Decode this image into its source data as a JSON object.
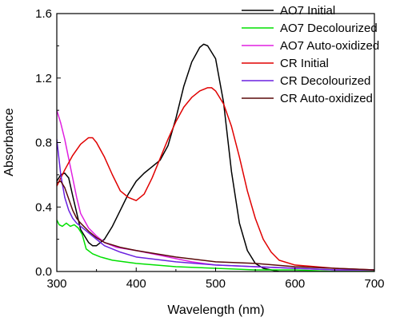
{
  "chart_data": {
    "type": "line",
    "title": "",
    "xlabel": "Wavelength (nm)",
    "ylabel": "Absorbance",
    "xlim": [
      300,
      700
    ],
    "ylim": [
      0.0,
      1.6
    ],
    "xticks": [
      300,
      400,
      500,
      600,
      700
    ],
    "yticks": [
      0.0,
      0.4,
      0.8,
      1.2,
      1.6
    ],
    "xtick_labels": [
      "300",
      "400",
      "500",
      "600",
      "700"
    ],
    "ytick_labels": [
      "0.0",
      "0.4",
      "0.8",
      "1.2",
      "1.6"
    ],
    "grid": false,
    "legend_position": "top-right",
    "series": [
      {
        "name": "AO7 Initial",
        "color": "#000000",
        "x": [
          300,
          305,
          310,
          315,
          320,
          330,
          340,
          345,
          350,
          360,
          370,
          380,
          390,
          400,
          410,
          420,
          430,
          440,
          450,
          460,
          470,
          480,
          485,
          490,
          500,
          510,
          520,
          530,
          540,
          550,
          560,
          570,
          580,
          600,
          650,
          700
        ],
        "y": [
          0.56,
          0.6,
          0.61,
          0.58,
          0.47,
          0.26,
          0.18,
          0.16,
          0.16,
          0.2,
          0.28,
          0.38,
          0.48,
          0.56,
          0.61,
          0.65,
          0.69,
          0.78,
          0.95,
          1.15,
          1.3,
          1.39,
          1.41,
          1.4,
          1.32,
          1.05,
          0.62,
          0.3,
          0.13,
          0.05,
          0.02,
          0.01,
          0.0,
          0.0,
          0.0,
          0.0
        ]
      },
      {
        "name": "AO7 Decolourized",
        "color": "#00e000",
        "x": [
          300,
          303,
          307,
          312,
          317,
          322,
          327,
          332,
          337,
          345,
          355,
          370,
          400,
          450,
          500,
          550,
          600,
          650,
          700
        ],
        "y": [
          0.32,
          0.29,
          0.28,
          0.3,
          0.28,
          0.29,
          0.27,
          0.23,
          0.14,
          0.11,
          0.09,
          0.07,
          0.05,
          0.03,
          0.02,
          0.01,
          0.01,
          0.0,
          0.0
        ]
      },
      {
        "name": "AO7 Auto-oxidized",
        "color": "#e020e0",
        "x": [
          300,
          305,
          310,
          315,
          320,
          325,
          330,
          340,
          350,
          360,
          375,
          400,
          430,
          450,
          470,
          500,
          550,
          600,
          650,
          700
        ],
        "y": [
          1.0,
          0.92,
          0.82,
          0.7,
          0.58,
          0.46,
          0.36,
          0.27,
          0.22,
          0.18,
          0.15,
          0.13,
          0.1,
          0.08,
          0.06,
          0.04,
          0.03,
          0.02,
          0.01,
          0.01
        ]
      },
      {
        "name": "CR Initial",
        "color": "#e00000",
        "x": [
          300,
          310,
          320,
          330,
          340,
          345,
          350,
          360,
          370,
          380,
          390,
          400,
          410,
          420,
          430,
          440,
          450,
          460,
          470,
          480,
          490,
          495,
          500,
          510,
          520,
          530,
          540,
          550,
          560,
          570,
          580,
          600,
          650,
          700
        ],
        "y": [
          0.53,
          0.63,
          0.72,
          0.79,
          0.83,
          0.83,
          0.8,
          0.71,
          0.6,
          0.5,
          0.46,
          0.44,
          0.48,
          0.58,
          0.7,
          0.82,
          0.93,
          1.02,
          1.08,
          1.12,
          1.14,
          1.14,
          1.12,
          1.04,
          0.9,
          0.71,
          0.5,
          0.33,
          0.2,
          0.12,
          0.07,
          0.04,
          0.02,
          0.01
        ]
      },
      {
        "name": "CR Decolourized",
        "color": "#6a20e0",
        "x": [
          300,
          305,
          310,
          315,
          320,
          325,
          330,
          340,
          350,
          360,
          380,
          400,
          450,
          500,
          550,
          600,
          650,
          700
        ],
        "y": [
          0.82,
          0.6,
          0.46,
          0.38,
          0.33,
          0.3,
          0.28,
          0.24,
          0.2,
          0.16,
          0.12,
          0.09,
          0.06,
          0.04,
          0.03,
          0.02,
          0.01,
          0.01
        ]
      },
      {
        "name": "CR Auto-oxidized",
        "color": "#5a0a0a",
        "x": [
          300,
          305,
          310,
          315,
          320,
          325,
          330,
          340,
          350,
          360,
          380,
          400,
          450,
          500,
          550,
          600,
          650,
          700
        ],
        "y": [
          0.55,
          0.56,
          0.52,
          0.45,
          0.38,
          0.33,
          0.3,
          0.25,
          0.21,
          0.18,
          0.15,
          0.13,
          0.09,
          0.06,
          0.05,
          0.03,
          0.02,
          0.01
        ]
      }
    ]
  }
}
